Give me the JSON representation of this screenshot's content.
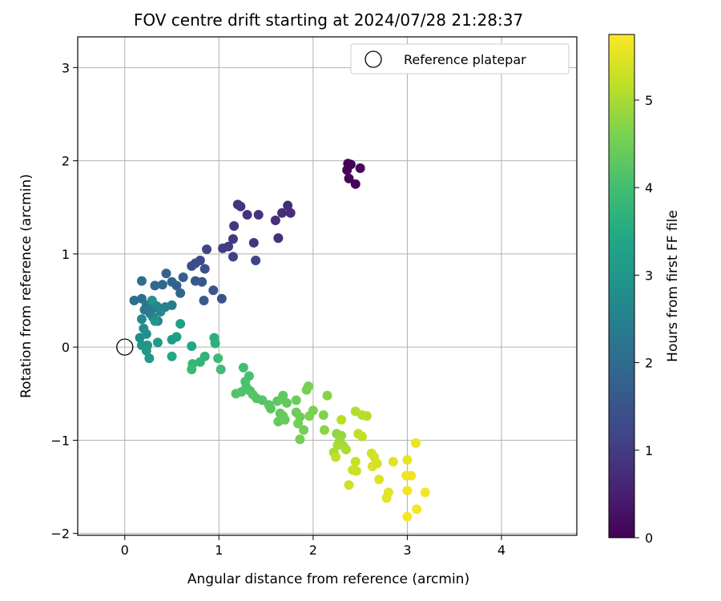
{
  "chart_data": {
    "type": "scatter",
    "title": "FOV centre drift starting at 2024/07/28 21:28:37",
    "xlabel": "Angular distance from reference (arcmin)",
    "ylabel": "Rotation from reference (arcmin)",
    "xlim": [
      -0.5,
      4.8
    ],
    "ylim": [
      -2.02,
      3.33
    ],
    "xticks": [
      {
        "v": 0,
        "label": "0"
      },
      {
        "v": 1,
        "label": "1"
      },
      {
        "v": 2,
        "label": "2"
      },
      {
        "v": 3,
        "label": "3"
      },
      {
        "v": 4,
        "label": "4"
      }
    ],
    "yticks": [
      {
        "v": -2,
        "label": "−2"
      },
      {
        "v": -1,
        "label": "−1"
      },
      {
        "v": 0,
        "label": "0"
      },
      {
        "v": 1,
        "label": "1"
      },
      {
        "v": 2,
        "label": "2"
      },
      {
        "v": 3,
        "label": "3"
      }
    ],
    "grid": true,
    "legend": {
      "position": "top-right",
      "entries": [
        {
          "label": "Reference platepar",
          "marker": "open-circle"
        }
      ]
    },
    "reference_point": {
      "x": 0,
      "y": 0
    },
    "colorbar": {
      "label": "Hours from first FF file",
      "colormap": "viridis",
      "range": [
        0,
        5.75
      ],
      "ticks": [
        {
          "v": 0,
          "label": "0"
        },
        {
          "v": 1,
          "label": "1"
        },
        {
          "v": 2,
          "label": "2"
        },
        {
          "v": 3,
          "label": "3"
        },
        {
          "v": 4,
          "label": "4"
        },
        {
          "v": 5,
          "label": "5"
        }
      ]
    },
    "points": [
      {
        "x": 2.37,
        "y": 1.97,
        "t": 0.02
      },
      {
        "x": 2.4,
        "y": 1.96,
        "t": 0.04
      },
      {
        "x": 2.36,
        "y": 1.9,
        "t": 0.06
      },
      {
        "x": 2.38,
        "y": 1.81,
        "t": 0.08
      },
      {
        "x": 2.45,
        "y": 1.75,
        "t": 0.1
      },
      {
        "x": 2.5,
        "y": 1.92,
        "t": 0.12
      },
      {
        "x": 1.73,
        "y": 1.52,
        "t": 0.7
      },
      {
        "x": 1.76,
        "y": 1.44,
        "t": 0.72
      },
      {
        "x": 1.67,
        "y": 1.44,
        "t": 0.74
      },
      {
        "x": 1.6,
        "y": 1.36,
        "t": 0.76
      },
      {
        "x": 1.63,
        "y": 1.17,
        "t": 0.78
      },
      {
        "x": 1.42,
        "y": 1.42,
        "t": 0.8
      },
      {
        "x": 1.3,
        "y": 1.42,
        "t": 0.82
      },
      {
        "x": 1.2,
        "y": 1.53,
        "t": 0.84
      },
      {
        "x": 1.23,
        "y": 1.51,
        "t": 0.86
      },
      {
        "x": 1.37,
        "y": 1.12,
        "t": 0.88
      },
      {
        "x": 1.16,
        "y": 1.3,
        "t": 0.9
      },
      {
        "x": 1.15,
        "y": 1.16,
        "t": 0.95
      },
      {
        "x": 1.1,
        "y": 1.08,
        "t": 1.0
      },
      {
        "x": 1.04,
        "y": 1.06,
        "t": 1.05
      },
      {
        "x": 1.15,
        "y": 0.97,
        "t": 1.1
      },
      {
        "x": 1.39,
        "y": 0.93,
        "t": 1.15
      },
      {
        "x": 0.87,
        "y": 1.05,
        "t": 1.2
      },
      {
        "x": 0.8,
        "y": 0.93,
        "t": 1.25
      },
      {
        "x": 0.75,
        "y": 0.9,
        "t": 1.3
      },
      {
        "x": 0.71,
        "y": 0.87,
        "t": 1.35
      },
      {
        "x": 0.85,
        "y": 0.84,
        "t": 1.4
      },
      {
        "x": 1.03,
        "y": 0.52,
        "t": 1.45
      },
      {
        "x": 0.94,
        "y": 0.61,
        "t": 1.5
      },
      {
        "x": 0.82,
        "y": 0.7,
        "t": 1.55
      },
      {
        "x": 0.75,
        "y": 0.71,
        "t": 1.6
      },
      {
        "x": 0.84,
        "y": 0.5,
        "t": 1.65
      },
      {
        "x": 0.62,
        "y": 0.75,
        "t": 1.7
      },
      {
        "x": 0.55,
        "y": 0.66,
        "t": 1.75
      },
      {
        "x": 0.44,
        "y": 0.79,
        "t": 1.8
      },
      {
        "x": 0.5,
        "y": 0.7,
        "t": 1.85
      },
      {
        "x": 0.59,
        "y": 0.58,
        "t": 1.9
      },
      {
        "x": 0.4,
        "y": 0.67,
        "t": 1.95
      },
      {
        "x": 0.32,
        "y": 0.66,
        "t": 2.0
      },
      {
        "x": 0.18,
        "y": 0.71,
        "t": 2.05
      },
      {
        "x": 0.1,
        "y": 0.5,
        "t": 2.1
      },
      {
        "x": 0.18,
        "y": 0.52,
        "t": 2.15
      },
      {
        "x": 0.23,
        "y": 0.45,
        "t": 2.2
      },
      {
        "x": 0.29,
        "y": 0.41,
        "t": 2.25
      },
      {
        "x": 0.21,
        "y": 0.4,
        "t": 2.3
      },
      {
        "x": 0.27,
        "y": 0.36,
        "t": 2.35
      },
      {
        "x": 0.5,
        "y": 0.45,
        "t": 2.4
      },
      {
        "x": 0.43,
        "y": 0.43,
        "t": 2.45
      },
      {
        "x": 0.35,
        "y": 0.28,
        "t": 2.5
      },
      {
        "x": 0.3,
        "y": 0.32,
        "t": 2.55
      },
      {
        "x": 0.34,
        "y": 0.44,
        "t": 2.6
      },
      {
        "x": 0.38,
        "y": 0.38,
        "t": 2.65
      },
      {
        "x": 0.18,
        "y": 0.3,
        "t": 2.7
      },
      {
        "x": 0.2,
        "y": 0.2,
        "t": 2.75
      },
      {
        "x": 0.16,
        "y": 0.1,
        "t": 2.8
      },
      {
        "x": 0.23,
        "y": 0.14,
        "t": 2.85
      },
      {
        "x": 0.29,
        "y": 0.5,
        "t": 2.9
      },
      {
        "x": 0.32,
        "y": 0.28,
        "t": 2.95
      },
      {
        "x": 0.18,
        "y": 0.02,
        "t": 3.0
      },
      {
        "x": 0.24,
        "y": 0.02,
        "t": 3.02
      },
      {
        "x": 0.26,
        "y": -0.12,
        "t": 3.05
      },
      {
        "x": 0.23,
        "y": -0.04,
        "t": 3.08
      },
      {
        "x": 0.35,
        "y": 0.05,
        "t": 3.12
      },
      {
        "x": 0.5,
        "y": 0.08,
        "t": 3.15
      },
      {
        "x": 0.55,
        "y": 0.11,
        "t": 3.2
      },
      {
        "x": 0.59,
        "y": 0.25,
        "t": 3.25
      },
      {
        "x": 0.71,
        "y": 0.01,
        "t": 3.4
      },
      {
        "x": 0.5,
        "y": -0.1,
        "t": 3.45
      },
      {
        "x": 0.95,
        "y": 0.1,
        "t": 3.6
      },
      {
        "x": 0.96,
        "y": 0.04,
        "t": 3.65
      },
      {
        "x": 0.85,
        "y": -0.1,
        "t": 3.7
      },
      {
        "x": 0.8,
        "y": -0.16,
        "t": 3.75
      },
      {
        "x": 0.72,
        "y": -0.18,
        "t": 3.8
      },
      {
        "x": 0.71,
        "y": -0.24,
        "t": 3.85
      },
      {
        "x": 0.99,
        "y": -0.12,
        "t": 3.9
      },
      {
        "x": 1.02,
        "y": -0.24,
        "t": 3.95
      },
      {
        "x": 1.26,
        "y": -0.22,
        "t": 4.0
      },
      {
        "x": 1.32,
        "y": -0.31,
        "t": 4.05
      },
      {
        "x": 1.28,
        "y": -0.37,
        "t": 4.08
      },
      {
        "x": 1.29,
        "y": -0.43,
        "t": 4.1
      },
      {
        "x": 1.33,
        "y": -0.47,
        "t": 4.12
      },
      {
        "x": 1.24,
        "y": -0.48,
        "t": 4.14
      },
      {
        "x": 1.18,
        "y": -0.5,
        "t": 4.16
      },
      {
        "x": 1.36,
        "y": -0.51,
        "t": 4.18
      },
      {
        "x": 1.4,
        "y": -0.55,
        "t": 4.2
      },
      {
        "x": 1.46,
        "y": -0.57,
        "t": 4.22
      },
      {
        "x": 1.53,
        "y": -0.62,
        "t": 4.24
      },
      {
        "x": 1.55,
        "y": -0.66,
        "t": 4.26
      },
      {
        "x": 1.62,
        "y": -0.58,
        "t": 4.28
      },
      {
        "x": 1.67,
        "y": -0.56,
        "t": 4.3
      },
      {
        "x": 1.68,
        "y": -0.52,
        "t": 4.32
      },
      {
        "x": 1.72,
        "y": -0.6,
        "t": 4.34
      },
      {
        "x": 1.65,
        "y": -0.71,
        "t": 4.36
      },
      {
        "x": 1.63,
        "y": -0.8,
        "t": 4.38
      },
      {
        "x": 1.68,
        "y": -0.74,
        "t": 4.4
      },
      {
        "x": 1.7,
        "y": -0.78,
        "t": 4.42
      },
      {
        "x": 1.82,
        "y": -0.57,
        "t": 4.44
      },
      {
        "x": 1.82,
        "y": -0.7,
        "t": 4.46
      },
      {
        "x": 1.86,
        "y": -0.75,
        "t": 4.48
      },
      {
        "x": 1.84,
        "y": -0.82,
        "t": 4.5
      },
      {
        "x": 1.9,
        "y": -0.89,
        "t": 4.52
      },
      {
        "x": 1.86,
        "y": -0.99,
        "t": 4.54
      },
      {
        "x": 1.93,
        "y": -0.46,
        "t": 4.56
      },
      {
        "x": 1.95,
        "y": -0.42,
        "t": 4.58
      },
      {
        "x": 2.0,
        "y": -0.68,
        "t": 4.6
      },
      {
        "x": 1.96,
        "y": -0.74,
        "t": 4.62
      },
      {
        "x": 2.11,
        "y": -0.73,
        "t": 4.65
      },
      {
        "x": 2.15,
        "y": -0.52,
        "t": 4.7
      },
      {
        "x": 2.12,
        "y": -0.89,
        "t": 4.75
      },
      {
        "x": 2.25,
        "y": -0.93,
        "t": 4.8
      },
      {
        "x": 2.3,
        "y": -0.95,
        "t": 4.85
      },
      {
        "x": 2.28,
        "y": -1.01,
        "t": 4.9
      },
      {
        "x": 2.32,
        "y": -1.06,
        "t": 4.95
      },
      {
        "x": 2.26,
        "y": -1.05,
        "t": 5.0
      },
      {
        "x": 2.22,
        "y": -1.13,
        "t": 5.02
      },
      {
        "x": 2.35,
        "y": -1.1,
        "t": 5.05
      },
      {
        "x": 2.45,
        "y": -0.69,
        "t": 5.08
      },
      {
        "x": 2.52,
        "y": -0.73,
        "t": 5.1
      },
      {
        "x": 2.57,
        "y": -0.74,
        "t": 5.12
      },
      {
        "x": 2.3,
        "y": -0.78,
        "t": 5.15
      },
      {
        "x": 2.48,
        "y": -0.93,
        "t": 5.18
      },
      {
        "x": 2.52,
        "y": -0.96,
        "t": 5.2
      },
      {
        "x": 2.24,
        "y": -1.18,
        "t": 5.22
      },
      {
        "x": 2.45,
        "y": -1.23,
        "t": 5.25
      },
      {
        "x": 2.42,
        "y": -1.32,
        "t": 5.28
      },
      {
        "x": 2.46,
        "y": -1.33,
        "t": 5.3
      },
      {
        "x": 2.38,
        "y": -1.48,
        "t": 5.32
      },
      {
        "x": 2.62,
        "y": -1.14,
        "t": 5.35
      },
      {
        "x": 2.65,
        "y": -1.18,
        "t": 5.38
      },
      {
        "x": 2.68,
        "y": -1.25,
        "t": 5.4
      },
      {
        "x": 2.63,
        "y": -1.28,
        "t": 5.42
      },
      {
        "x": 2.7,
        "y": -1.42,
        "t": 5.45
      },
      {
        "x": 2.85,
        "y": -1.23,
        "t": 5.48
      },
      {
        "x": 2.8,
        "y": -1.56,
        "t": 5.5
      },
      {
        "x": 2.78,
        "y": -1.62,
        "t": 5.52
      },
      {
        "x": 3.0,
        "y": -1.21,
        "t": 5.55
      },
      {
        "x": 3.09,
        "y": -1.03,
        "t": 5.58
      },
      {
        "x": 2.99,
        "y": -1.38,
        "t": 5.6
      },
      {
        "x": 3.04,
        "y": -1.38,
        "t": 5.62
      },
      {
        "x": 3.0,
        "y": -1.54,
        "t": 5.64
      },
      {
        "x": 3.19,
        "y": -1.56,
        "t": 5.66
      },
      {
        "x": 3.1,
        "y": -1.74,
        "t": 5.68
      },
      {
        "x": 3.0,
        "y": -1.82,
        "t": 5.7
      }
    ]
  }
}
